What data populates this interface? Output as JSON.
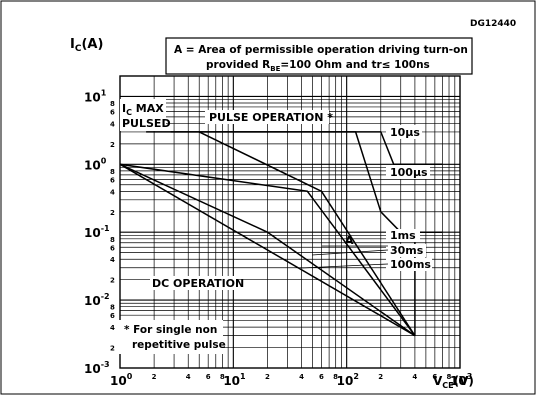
{
  "chart_data": {
    "type": "line",
    "figure_id": "DG12440",
    "ylabel_main": "I",
    "ylabel_sub": "C",
    "ylabel_unit": "(A)",
    "xlabel_main": "V",
    "xlabel_sub": "CE",
    "xlabel_unit": "(V)",
    "xscale": "log",
    "yscale": "log",
    "xlim": [
      1,
      1000
    ],
    "ylim": [
      0.001,
      20
    ],
    "grid": true,
    "x_ticks": [
      {
        "base": "10",
        "exp": "0",
        "value": 1
      },
      {
        "base": "10",
        "exp": "1",
        "value": 10
      },
      {
        "base": "10",
        "exp": "2",
        "value": 100
      },
      {
        "base": "10",
        "exp": "3",
        "value": 1000
      }
    ],
    "x_minor_labels": [
      "2",
      "4",
      "6",
      "8"
    ],
    "y_ticks": [
      {
        "base": "10",
        "exp": "-3",
        "value": 0.001
      },
      {
        "base": "10",
        "exp": "-2",
        "value": 0.01
      },
      {
        "base": "10",
        "exp": "-1",
        "value": 0.1
      },
      {
        "base": "10",
        "exp": "0",
        "value": 1
      },
      {
        "base": "10",
        "exp": "1",
        "value": 10
      }
    ],
    "y_minor_labels": [
      "2",
      "4",
      "6",
      "8"
    ],
    "annotation_box": {
      "line1": "A = Area of permissible operation driving turn-on",
      "line2_prefix": "provided R",
      "line2_sub": "BE",
      "line2_mid": "=100 Ohm and tr",
      "line2_symbol": "≤",
      "line2_suffix": " 100ns"
    },
    "labels": {
      "ic_max_line1": "I",
      "ic_max_sub": "C",
      "ic_max_rest": " MAX",
      "ic_max_line2": "PULSED",
      "pulse_operation": "PULSE OPERATION *",
      "dc_operation": "DC OPERATION",
      "area_marker": "A",
      "footnote_line1": "* For single non",
      "footnote_line2": "repetitive pulse"
    },
    "series": [
      {
        "name": "10μs",
        "points": [
          [
            2.8,
            3
          ],
          [
            200,
            3
          ],
          [
            260,
            1.0
          ],
          [
            700,
            1.0
          ]
        ]
      },
      {
        "name": "100μs",
        "points": [
          [
            1.7,
            3
          ],
          [
            120,
            3
          ],
          [
            200,
            0.2
          ],
          [
            300,
            0.1
          ],
          [
            700,
            0.1
          ]
        ]
      },
      {
        "name": "1ms",
        "points": [
          [
            5,
            3
          ],
          [
            60,
            0.4
          ],
          [
            400,
            0.003
          ]
        ]
      },
      {
        "name": "30ms",
        "points": [
          [
            1,
            1
          ],
          [
            45,
            0.4
          ],
          [
            400,
            0.003
          ]
        ]
      },
      {
        "name": "100ms",
        "points": [
          [
            1,
            1
          ],
          [
            20,
            0.1
          ],
          [
            400,
            0.003
          ]
        ]
      },
      {
        "name": "DC",
        "points": [
          [
            1,
            1
          ],
          [
            400,
            0.003
          ]
        ]
      }
    ],
    "area_boundary": {
      "points": [
        [
          400,
          0.003
        ],
        [
          400,
          0.1
        ]
      ]
    },
    "limits": {
      "ic_max_pulsed": 3,
      "vce_max": 400
    }
  }
}
